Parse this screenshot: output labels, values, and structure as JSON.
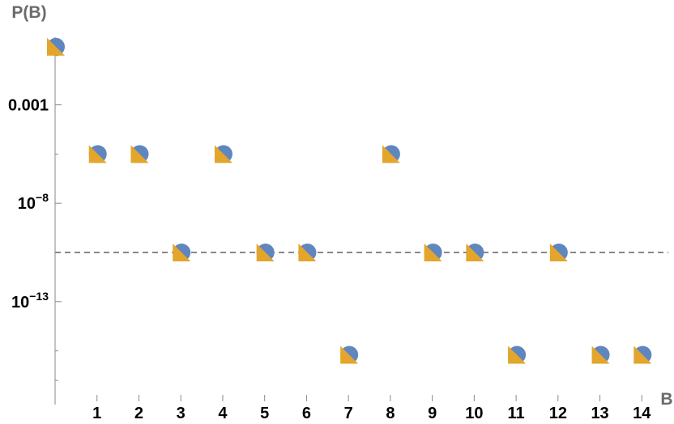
{
  "chart_data": {
    "type": "scatter",
    "title": "",
    "xlabel": "B",
    "ylabel": "P(B)",
    "yscale": "log",
    "xlim": [
      0,
      14.4
    ],
    "ylim_log10": [
      -17.9,
      0.6
    ],
    "x_ticks": [
      {
        "value": 1,
        "label": "1"
      },
      {
        "value": 2,
        "label": "2"
      },
      {
        "value": 3,
        "label": "3"
      },
      {
        "value": 4,
        "label": "4"
      },
      {
        "value": 5,
        "label": "5"
      },
      {
        "value": 6,
        "label": "6"
      },
      {
        "value": 7,
        "label": "7"
      },
      {
        "value": 8,
        "label": "8"
      },
      {
        "value": 9,
        "label": "9"
      },
      {
        "value": 10,
        "label": "10"
      },
      {
        "value": 11,
        "label": "11"
      },
      {
        "value": 12,
        "label": "12"
      },
      {
        "value": 13,
        "label": "13"
      },
      {
        "value": 14,
        "label": "14"
      }
    ],
    "y_major_ticks": [
      {
        "log10": -3,
        "base": "0.001",
        "exp": ""
      },
      {
        "log10": -8,
        "base": "10",
        "exp": "−8"
      },
      {
        "log10": -13,
        "base": "10",
        "exp": "−13"
      }
    ],
    "y_minor_ticks_log10": [
      -0.5,
      -5.5,
      -10.5,
      -15.5,
      -17
    ],
    "reference_line_log10": -10.5,
    "series": [
      {
        "marker": "circle",
        "color": "#5f86bf",
        "x": [
          0,
          1,
          2,
          3,
          4,
          5,
          6,
          7,
          8,
          9,
          10,
          11,
          12,
          13,
          14
        ],
        "log10_y": [
          -0.05,
          -5.5,
          -5.5,
          -10.5,
          -5.5,
          -10.5,
          -10.5,
          -15.7,
          -5.5,
          -10.5,
          -10.5,
          -15.7,
          -10.5,
          -15.7,
          -15.7
        ]
      },
      {
        "marker": "triangle",
        "color": "#e3a52b",
        "x": [
          0,
          1,
          2,
          3,
          4,
          5,
          6,
          7,
          8,
          9,
          10,
          11,
          12,
          13,
          14
        ],
        "log10_y": [
          -0.05,
          -5.5,
          -5.5,
          -10.5,
          -5.5,
          -10.5,
          -10.5,
          -15.7,
          -5.5,
          -10.5,
          -10.5,
          -15.7,
          -10.5,
          -15.7,
          -15.7
        ]
      }
    ]
  }
}
